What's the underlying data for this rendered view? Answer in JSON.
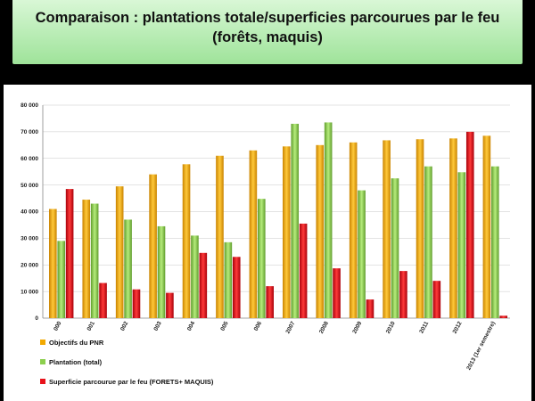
{
  "title": "Comparaison : plantations totale/superficies parcourues par le feu (forêts, maquis)",
  "chart_data": {
    "type": "bar",
    "categories": [
      "2000",
      "2001",
      "2002",
      "2003",
      "2004",
      "2005",
      "2006",
      "2007",
      "2008",
      "2009",
      "2010",
      "2011",
      "2012",
      "2013 (1er semestre)"
    ],
    "category_labels_visible": [
      "000",
      "001",
      "002",
      "003",
      "004",
      "005",
      "006",
      "2007",
      "2008",
      "2009",
      "2010",
      "2011",
      "2012",
      "2013 (1er semestre)"
    ],
    "series": [
      {
        "name": "Objectifs du PNR",
        "color": "#f2a900",
        "values": [
          41000,
          44500,
          49500,
          54000,
          57800,
          61000,
          63000,
          64500,
          65000,
          66000,
          66800,
          67200,
          67500,
          68500
        ]
      },
      {
        "name": "Plantation (total)",
        "color": "#8ccf4d",
        "values": [
          29000,
          43000,
          37000,
          34500,
          31000,
          28500,
          44800,
          73000,
          73500,
          48000,
          52500,
          57000,
          54800,
          57000
        ]
      },
      {
        "name": "Superficie parcourue par le feu (FORETS+ MAQUIS)",
        "color": "#e8121a",
        "values": [
          48500,
          13200,
          10800,
          9500,
          24500,
          23000,
          12000,
          35500,
          18700,
          7000,
          17700,
          14000,
          70000,
          900
        ]
      }
    ],
    "ylim": [
      0,
      80000
    ],
    "yticks": [
      "0",
      "10 000",
      "20 000",
      "30 000",
      "40 000",
      "50 000",
      "60 000",
      "70 000",
      "80 000"
    ],
    "grid": true,
    "legend_placement": "bottom-left"
  }
}
